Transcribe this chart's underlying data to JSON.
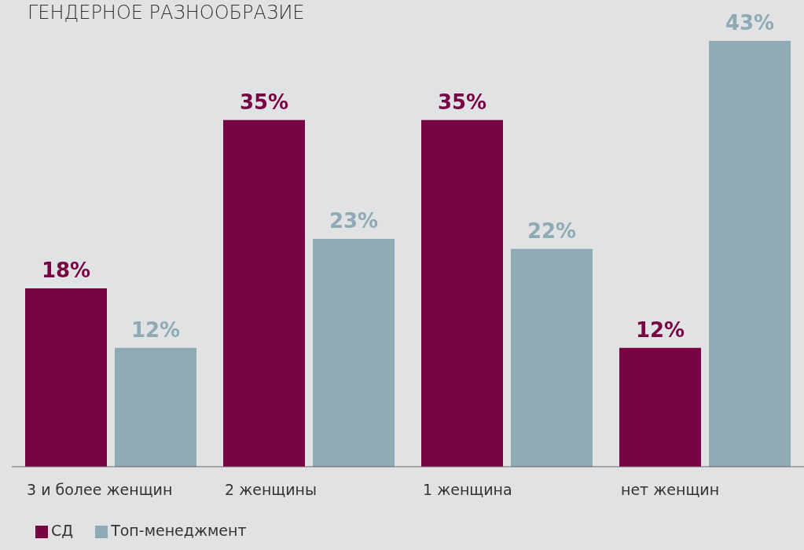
{
  "chart_data": {
    "type": "bar",
    "title": "ГЕНДЕРНОЕ РАЗНООБРАЗИЕ",
    "categories": [
      "3 и более женщин",
      "2 женщины",
      "1 женщина",
      "нет женщин"
    ],
    "series": [
      {
        "name": "СД",
        "color": "#780443",
        "values": [
          18,
          35,
          35,
          12
        ],
        "value_labels": [
          "18%",
          "35%",
          "35%",
          "12%"
        ]
      },
      {
        "name": "Топ-менеджмент",
        "color": "#8eaab5",
        "values": [
          12,
          23,
          22,
          43
        ],
        "value_labels": [
          "12%",
          "23%",
          "22%",
          "43%"
        ]
      }
    ],
    "legend": "bottom left"
  }
}
